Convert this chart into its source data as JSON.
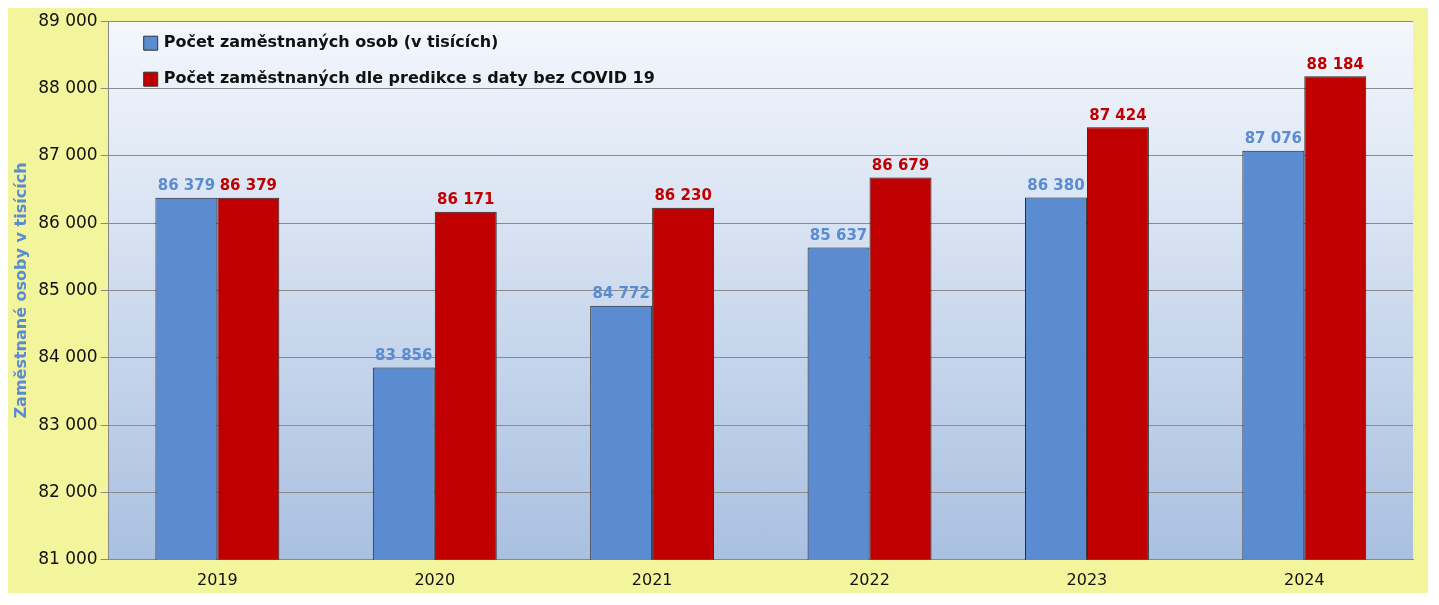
{
  "chart_data": {
    "type": "bar",
    "ylabel": "Zaměstnané osoby v tisících",
    "categories": [
      "2019",
      "2020",
      "2021",
      "2022",
      "2023",
      "2024"
    ],
    "series": [
      {
        "name": "Počet zaměstnaných osob (v tisících)",
        "color": "#5b8bd0",
        "values": [
          86379,
          83856,
          84772,
          85637,
          86380,
          87076
        ],
        "value_labels": [
          "86 379",
          "83 856",
          "84 772",
          "85 637",
          "86 380",
          "87 076"
        ]
      },
      {
        "name": "Počet zaměstnaných dle predikce s daty bez COVID 19",
        "color": "#c00000",
        "values": [
          86379,
          86171,
          86230,
          86679,
          87424,
          88184
        ],
        "value_labels": [
          "86 379",
          "86 171",
          "86 230",
          "86 679",
          "87 424",
          "88 184"
        ]
      }
    ],
    "ylim": [
      81000,
      89000
    ],
    "yticks": [
      {
        "value": 81000,
        "label": "81 000"
      },
      {
        "value": 82000,
        "label": "82 000"
      },
      {
        "value": 83000,
        "label": "83 000"
      },
      {
        "value": 84000,
        "label": "84 000"
      },
      {
        "value": 85000,
        "label": "85 000"
      },
      {
        "value": 86000,
        "label": "86 000"
      },
      {
        "value": 87000,
        "label": "87 000"
      },
      {
        "value": 88000,
        "label": "88 000"
      },
      {
        "value": 89000,
        "label": "89 000"
      }
    ],
    "grid": "y",
    "legend": "top left"
  }
}
